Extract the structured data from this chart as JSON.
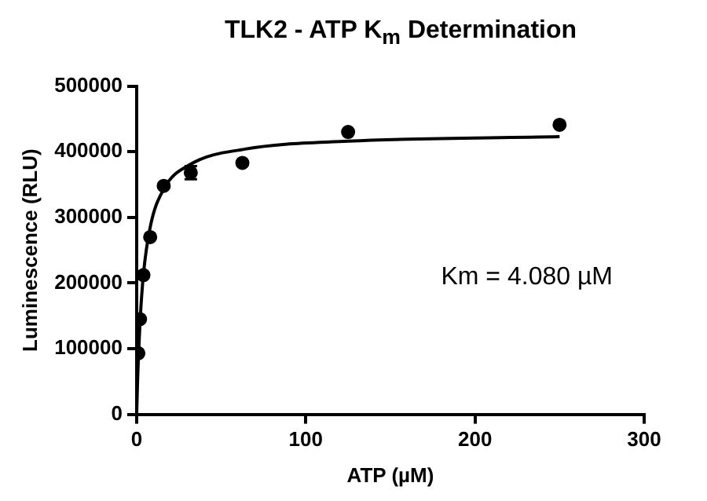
{
  "chart_data": {
    "type": "scatter",
    "title": "TLK2 - ATP K$_{m}$ Determination",
    "xlabel": "ATP (µM)",
    "ylabel": "Luminescence (RLU)",
    "xlim": [
      0,
      300
    ],
    "xticks": [
      0,
      100,
      200,
      300
    ],
    "ylim": [
      0,
      500000
    ],
    "yticks": [
      0,
      100000,
      200000,
      300000,
      400000,
      500000
    ],
    "grid": false,
    "legend": false,
    "annotations": [
      "Km = 4.080 µM"
    ],
    "series": [
      {
        "marker": "circle",
        "color": "#000000",
        "x": [
          1,
          2,
          4,
          8,
          16,
          32,
          62.5,
          125,
          250
        ],
        "values": [
          93000,
          145000,
          212000,
          270000,
          348000,
          368000,
          383000,
          430000,
          441000
        ],
        "errors": [
          null,
          null,
          null,
          null,
          null,
          10000,
          null,
          null,
          null
        ]
      },
      {
        "type": "line",
        "marker": "none",
        "color": "#000000",
        "x": [
          0,
          0.5,
          1,
          2,
          4,
          8,
          16,
          32,
          64,
          125,
          250
        ],
        "values": [
          0,
          47000,
          85000,
          141000,
          213000,
          285000,
          343000,
          381000,
          404000,
          416000,
          423000
        ]
      }
    ]
  }
}
